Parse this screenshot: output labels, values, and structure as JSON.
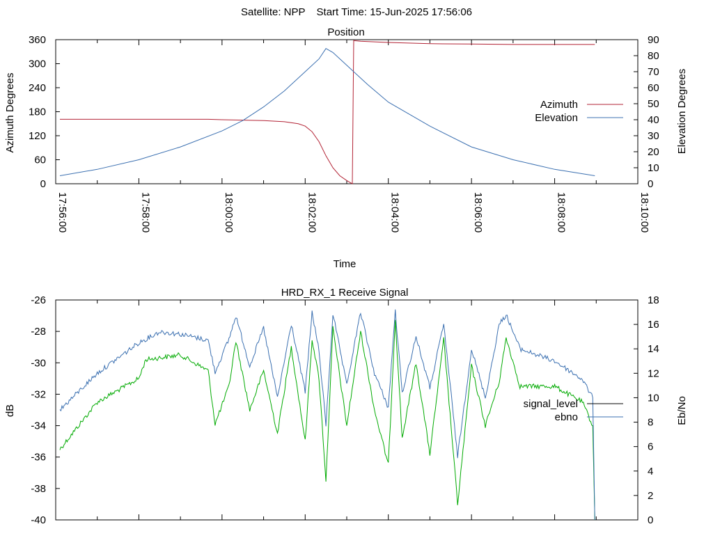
{
  "header": {
    "satellite": "Satellite: NPP",
    "start_time": "Start Time: 15-Jun-2025 17:56:06"
  },
  "colors": {
    "azimuth": "#b22234",
    "elevation": "#3a6fb0",
    "signal_level": "#000000",
    "ebno": "#3a6fb0",
    "signal_green": "#00aa00",
    "axis": "#000000"
  },
  "chart_data": [
    {
      "type": "line",
      "title": "Position",
      "xlabel": "Time",
      "ylabel": "Azimuth Degrees",
      "y2label": "Elevation Degrees",
      "xlim": [
        "17:56:00",
        "18:10:00"
      ],
      "x_ticks": [
        "17:56:00",
        "17:58:00",
        "18:00:00",
        "18:02:00",
        "18:04:00",
        "18:06:00",
        "18:08:00",
        "18:10:00"
      ],
      "ylim": [
        0,
        360
      ],
      "y_ticks": [
        0,
        60,
        120,
        180,
        240,
        300,
        360
      ],
      "y2lim": [
        0,
        90
      ],
      "y2_ticks": [
        0,
        10,
        20,
        30,
        40,
        50,
        60,
        70,
        80,
        90
      ],
      "legend_position": "right",
      "series": [
        {
          "name": "Azimuth",
          "axis": "left",
          "color": "#b22234",
          "points": [
            [
              "17:56:06",
              161
            ],
            [
              "17:57:00",
              161
            ],
            [
              "17:58:00",
              161
            ],
            [
              "17:59:00",
              161
            ],
            [
              "17:59:40",
              161
            ],
            [
              "18:00:00",
              160
            ],
            [
              "18:00:30",
              159
            ],
            [
              "18:01:00",
              158
            ],
            [
              "18:01:30",
              155
            ],
            [
              "18:01:50",
              150
            ],
            [
              "18:02:00",
              144
            ],
            [
              "18:02:10",
              130
            ],
            [
              "18:02:20",
              105
            ],
            [
              "18:02:30",
              70
            ],
            [
              "18:02:40",
              40
            ],
            [
              "18:02:50",
              20
            ],
            [
              "18:03:00",
              8
            ],
            [
              "18:03:05",
              3
            ],
            [
              "18:03:08",
              0
            ],
            [
              "18:03:09",
              180
            ],
            [
              "18:03:10",
              358
            ],
            [
              "18:03:20",
              356
            ],
            [
              "18:04:00",
              353
            ],
            [
              "18:05:00",
              350
            ],
            [
              "18:06:00",
              349
            ],
            [
              "18:07:00",
              348
            ],
            [
              "18:08:00",
              348
            ],
            [
              "18:08:58",
              348
            ]
          ]
        },
        {
          "name": "Elevation",
          "axis": "right",
          "color": "#3a6fb0",
          "points": [
            [
              "17:56:06",
              5
            ],
            [
              "17:57:00",
              9
            ],
            [
              "17:58:00",
              15
            ],
            [
              "17:59:00",
              23
            ],
            [
              "18:00:00",
              33
            ],
            [
              "18:00:30",
              39.5
            ],
            [
              "18:01:00",
              48
            ],
            [
              "18:01:30",
              58
            ],
            [
              "18:02:00",
              70
            ],
            [
              "18:02:20",
              78
            ],
            [
              "18:02:30",
              84.5
            ],
            [
              "18:02:40",
              82
            ],
            [
              "18:03:00",
              74
            ],
            [
              "18:03:30",
              62
            ],
            [
              "18:04:00",
              51
            ],
            [
              "18:05:00",
              36
            ],
            [
              "18:06:00",
              23
            ],
            [
              "18:07:00",
              15
            ],
            [
              "18:08:00",
              9
            ],
            [
              "18:08:58",
              5
            ]
          ]
        }
      ]
    },
    {
      "type": "line",
      "title": "HRD_RX_1 Receive Signal",
      "xlabel": "",
      "ylabel": "dB",
      "y2label": "Eb/No",
      "xlim": [
        "17:56:00",
        "18:10:00"
      ],
      "ylim": [
        -40,
        -26
      ],
      "y_ticks": [
        -40,
        -38,
        -36,
        -34,
        -32,
        -30,
        -28,
        -26
      ],
      "y2lim": [
        0,
        18
      ],
      "y2_ticks": [
        0,
        2,
        4,
        6,
        8,
        10,
        12,
        14,
        16,
        18
      ],
      "legend_position": "right",
      "series": [
        {
          "name": "signal_level",
          "axis": "left",
          "color": "#00aa00",
          "points": [
            [
              "17:56:06",
              -35.5
            ],
            [
              "17:57:00",
              -32.5
            ],
            [
              "17:58:00",
              -31
            ],
            [
              "17:58:10",
              -29.8
            ],
            [
              "17:59:00",
              -29.5
            ],
            [
              "17:59:40",
              -30.5
            ],
            [
              "17:59:50",
              -33.9
            ],
            [
              "18:00:10",
              -31.5
            ],
            [
              "18:00:20",
              -28.6
            ],
            [
              "18:00:40",
              -33.0
            ],
            [
              "18:01:00",
              -30.5
            ],
            [
              "18:01:20",
              -34.5
            ],
            [
              "18:01:40",
              -29.0
            ],
            [
              "18:02:00",
              -35.0
            ],
            [
              "18:02:10",
              -28.5
            ],
            [
              "18:02:20",
              -31.0
            ],
            [
              "18:02:30",
              -37.5
            ],
            [
              "18:02:40",
              -27.8
            ],
            [
              "18:03:00",
              -34.0
            ],
            [
              "18:03:20",
              -28.0
            ],
            [
              "18:03:40",
              -33.0
            ],
            [
              "18:04:00",
              -36.5
            ],
            [
              "18:04:10",
              -27.2
            ],
            [
              "18:04:20",
              -34.8
            ],
            [
              "18:04:40",
              -30.0
            ],
            [
              "18:05:00",
              -35.8
            ],
            [
              "18:05:20",
              -28.5
            ],
            [
              "18:05:40",
              -39.0
            ],
            [
              "18:06:00",
              -30.2
            ],
            [
              "18:06:20",
              -34.0
            ],
            [
              "18:06:40",
              -31.2
            ],
            [
              "18:06:50",
              -28.4
            ],
            [
              "18:07:10",
              -31.5
            ],
            [
              "18:08:00",
              -31.5
            ],
            [
              "18:08:40",
              -32.5
            ],
            [
              "18:08:55",
              -34.0
            ],
            [
              "18:08:58",
              -40
            ]
          ]
        },
        {
          "name": "ebno",
          "axis": "right",
          "color": "#3a6fb0",
          "points": [
            [
              "17:56:06",
              9.0
            ],
            [
              "17:57:00",
              12.0
            ],
            [
              "17:58:00",
              14.5
            ],
            [
              "17:58:30",
              15.4
            ],
            [
              "17:59:00",
              15.2
            ],
            [
              "17:59:40",
              14.7
            ],
            [
              "17:59:50",
              12.1
            ],
            [
              "18:00:10",
              14.8
            ],
            [
              "18:00:20",
              16.7
            ],
            [
              "18:00:40",
              12.6
            ],
            [
              "18:01:00",
              15.7
            ],
            [
              "18:01:20",
              10.0
            ],
            [
              "18:01:40",
              16.0
            ],
            [
              "18:02:00",
              10.5
            ],
            [
              "18:02:10",
              17.0
            ],
            [
              "18:02:20",
              13.8
            ],
            [
              "18:02:30",
              7.8
            ],
            [
              "18:02:40",
              16.9
            ],
            [
              "18:03:00",
              11.0
            ],
            [
              "18:03:20",
              17.0
            ],
            [
              "18:03:40",
              12.0
            ],
            [
              "18:04:00",
              9.2
            ],
            [
              "18:04:10",
              17.1
            ],
            [
              "18:04:20",
              10.4
            ],
            [
              "18:04:40",
              15.0
            ],
            [
              "18:05:00",
              10.8
            ],
            [
              "18:05:20",
              16.0
            ],
            [
              "18:05:40",
              5.2
            ],
            [
              "18:06:00",
              14.0
            ],
            [
              "18:06:20",
              10.0
            ],
            [
              "18:06:40",
              16.0
            ],
            [
              "18:06:50",
              16.8
            ],
            [
              "18:07:10",
              14.0
            ],
            [
              "18:08:00",
              13.0
            ],
            [
              "18:08:40",
              11.5
            ],
            [
              "18:08:55",
              10.0
            ],
            [
              "18:08:58",
              0
            ]
          ]
        }
      ]
    }
  ]
}
